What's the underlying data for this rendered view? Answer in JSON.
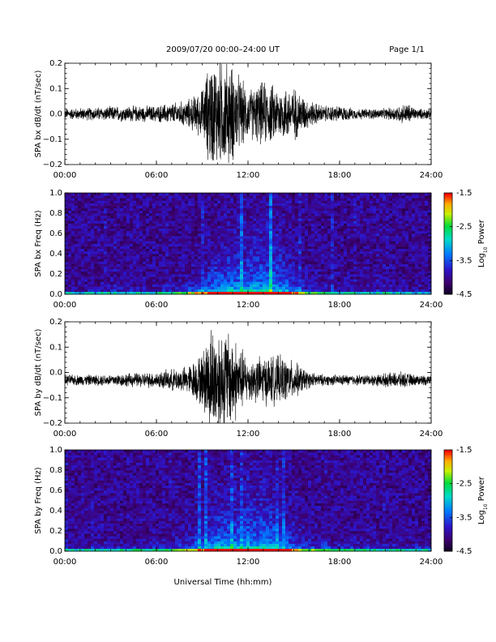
{
  "header": {
    "title": "2009/07/20  00:00–24:00 UT",
    "page": "Page 1/1"
  },
  "chart_data": [
    {
      "type": "line",
      "ylabel": "SPA bx dB/dt (nT/sec)",
      "xlabel": "",
      "xticks": [
        "00:00",
        "06:00",
        "12:00",
        "18:00",
        "24:00"
      ],
      "x_hours": [
        0,
        6,
        12,
        18,
        24
      ],
      "xlim": [
        0,
        24
      ],
      "ylim": [
        -0.2,
        0.2
      ],
      "yticks": [
        -0.2,
        -0.1,
        0.0,
        0.1,
        0.2
      ],
      "ytick_labels": [
        "−0.2",
        "−0.1",
        "0.0",
        "0.1",
        "0.2"
      ],
      "baseline": 0.0,
      "envelope": {
        "hours": [
          0,
          2,
          4,
          6,
          8,
          9,
          9.5,
          10,
          10.5,
          11,
          12,
          13,
          14,
          15,
          16,
          17,
          18,
          19,
          21,
          22.5,
          23,
          24
        ],
        "amplitude": [
          0.02,
          0.025,
          0.03,
          0.03,
          0.05,
          0.09,
          0.2,
          0.2,
          0.2,
          0.18,
          0.09,
          0.12,
          0.1,
          0.1,
          0.05,
          0.03,
          0.03,
          0.02,
          0.02,
          0.04,
          0.02,
          0.02
        ]
      },
      "grid": false
    },
    {
      "type": "heatmap",
      "ylabel": "SPA bx Freq (Hz)",
      "xticks": [
        "00:00",
        "06:00",
        "12:00",
        "18:00",
        "24:00"
      ],
      "xlim": [
        0,
        24
      ],
      "ylim": [
        0,
        1.0
      ],
      "yticks": [
        0.0,
        0.2,
        0.4,
        0.6,
        0.8,
        1.0
      ],
      "ytick_labels": [
        "0.0",
        "0.2",
        "0.4",
        "0.6",
        "0.8",
        "1.0"
      ],
      "colorbar": {
        "label": "Log10 Power",
        "label_main": "Log",
        "label_sub": "10",
        "label_rest": " Power",
        "range": [
          -4.5,
          -1.5
        ],
        "ticks": [
          "-1.5",
          "-2.5",
          "-3.5",
          "-4.5"
        ],
        "tick_values": [
          -1.5,
          -2.5,
          -3.5,
          -4.5
        ]
      },
      "activity": {
        "hours": [
          0,
          4,
          7,
          8.5,
          10,
          11,
          12,
          13,
          14,
          15,
          16,
          18,
          20,
          24
        ],
        "level": [
          0.1,
          0.15,
          0.2,
          0.45,
          0.75,
          0.8,
          0.8,
          0.85,
          0.8,
          0.55,
          0.3,
          0.2,
          0.15,
          0.1
        ]
      }
    },
    {
      "type": "line",
      "ylabel": "SPA by dB/dt (nT/sec)",
      "xticks": [
        "00:00",
        "06:00",
        "12:00",
        "18:00",
        "24:00"
      ],
      "x_hours": [
        0,
        6,
        12,
        18,
        24
      ],
      "xlim": [
        0,
        24
      ],
      "ylim": [
        -0.2,
        0.2
      ],
      "yticks": [
        -0.2,
        -0.1,
        0.0,
        0.1,
        0.2
      ],
      "ytick_labels": [
        "−0.2",
        "−0.1",
        "0.0",
        "0.1",
        "0.2"
      ],
      "baseline": -0.03,
      "envelope": {
        "hours": [
          0,
          2,
          4,
          6,
          8,
          9,
          9.5,
          10,
          10.5,
          11,
          12,
          13,
          14,
          15,
          16,
          17,
          18,
          20,
          22,
          23,
          24
        ],
        "amplitude": [
          0.02,
          0.02,
          0.025,
          0.03,
          0.05,
          0.1,
          0.2,
          0.2,
          0.2,
          0.17,
          0.08,
          0.09,
          0.09,
          0.07,
          0.03,
          0.02,
          0.02,
          0.02,
          0.03,
          0.02,
          0.02
        ]
      },
      "grid": false
    },
    {
      "type": "heatmap",
      "ylabel": "SPA by Freq (Hz)",
      "xticks": [
        "00:00",
        "06:00",
        "12:00",
        "18:00",
        "24:00"
      ],
      "xlim": [
        0,
        24
      ],
      "ylim": [
        0,
        1.0
      ],
      "yticks": [
        0.0,
        0.2,
        0.4,
        0.6,
        0.8,
        1.0
      ],
      "ytick_labels": [
        "0.0",
        "0.2",
        "0.4",
        "0.6",
        "0.8",
        "1.0"
      ],
      "colorbar": {
        "label": "Log10 Power",
        "label_main": "Log",
        "label_sub": "10",
        "label_rest": " Power",
        "range": [
          -4.5,
          -1.5
        ],
        "ticks": [
          "-1.5",
          "-2.5",
          "-3.5",
          "-4.5"
        ],
        "tick_values": [
          -1.5,
          -2.5,
          -3.5,
          -4.5
        ]
      },
      "activity": {
        "hours": [
          0,
          4,
          7,
          8.5,
          10,
          11,
          12,
          13,
          14,
          15,
          16,
          18,
          20,
          24
        ],
        "level": [
          0.15,
          0.2,
          0.25,
          0.5,
          0.8,
          0.8,
          0.8,
          0.85,
          0.8,
          0.55,
          0.35,
          0.25,
          0.2,
          0.15
        ]
      }
    }
  ],
  "footer": {
    "xlabel": "Universal Time (hh:mm)"
  }
}
